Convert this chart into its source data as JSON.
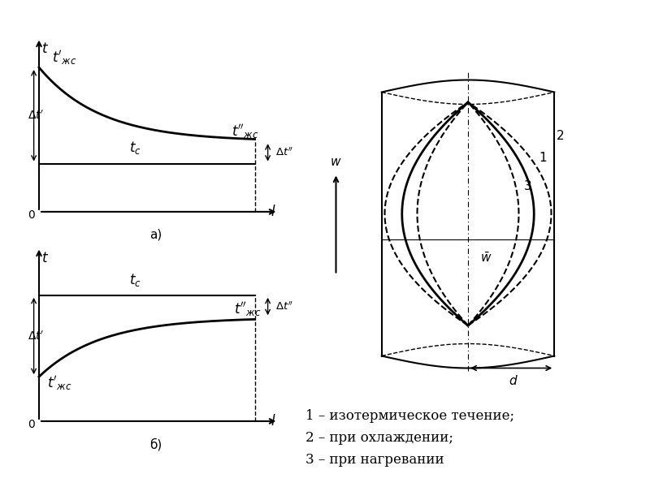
{
  "bg_color": "#ffffff",
  "line_color": "#000000",
  "font_size_label": 12,
  "font_size_annot": 11,
  "font_size_legend": 12,
  "legend_items": [
    "1 – изотермическое течение;",
    "2 – при охлаждении;",
    "3 – при нагревании"
  ]
}
